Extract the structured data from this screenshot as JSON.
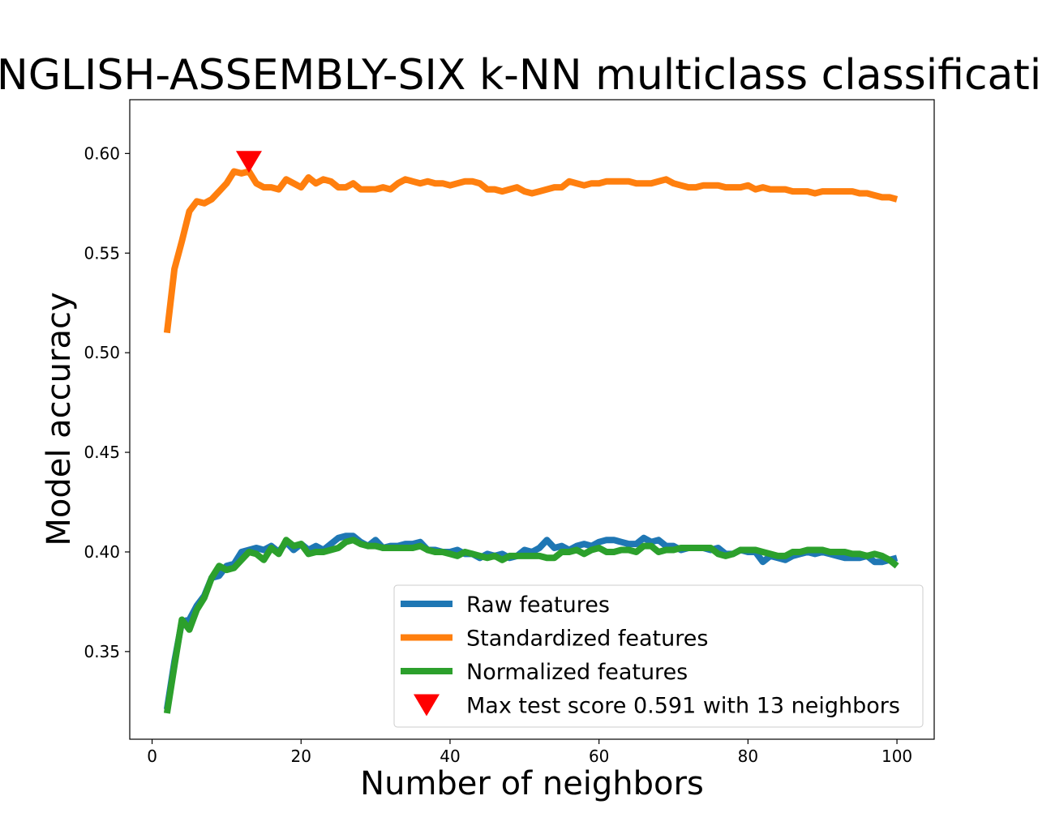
{
  "chart_data": {
    "type": "line",
    "title": "ENGLISH-ASSEMBLY-SIX k-NN multiclass classification",
    "xlabel": "Number of neighbors",
    "ylabel": "Model accuracy",
    "xlim": [
      -3,
      105
    ],
    "ylim": [
      0.306,
      0.627
    ],
    "xticks": [
      0,
      20,
      40,
      60,
      80,
      100
    ],
    "yticks": [
      0.35,
      0.4,
      0.45,
      0.5,
      0.55,
      0.6
    ],
    "xtick_labels": [
      "0",
      "20",
      "40",
      "60",
      "80",
      "100"
    ],
    "ytick_labels": [
      "0.35",
      "0.40",
      "0.45",
      "0.50",
      "0.55",
      "0.60"
    ],
    "grid": false,
    "legend_position": "lower-right",
    "x_start": 2,
    "series": [
      {
        "name": "Raw features",
        "color": "#1f77b4",
        "values": [
          0.321,
          0.345,
          0.365,
          0.366,
          0.373,
          0.378,
          0.385,
          0.389,
          0.393,
          0.395,
          0.4,
          0.401,
          0.402,
          0.401,
          0.403,
          0.4,
          0.404,
          0.402,
          0.403,
          0.402,
          0.402,
          0.402,
          0.404,
          0.406,
          0.408,
          0.407,
          0.405,
          0.404,
          0.406,
          0.403,
          0.403,
          0.403,
          0.403,
          0.404,
          0.403,
          0.404,
          0.401,
          0.4,
          0.4,
          0.401,
          0.399,
          0.4,
          0.398,
          0.399,
          0.398,
          0.399,
          0.397,
          0.398,
          0.4,
          0.4,
          0.401,
          0.402,
          0.406,
          0.402,
          0.403,
          0.402,
          0.403,
          0.404,
          0.404,
          0.406,
          0.405,
          0.405,
          0.404,
          0.404,
          0.406,
          0.405,
          0.405,
          0.403,
          0.403,
          0.402,
          0.402,
          0.402,
          0.402,
          0.401,
          0.401,
          0.399,
          0.399,
          0.401,
          0.4,
          0.399,
          0.395,
          0.398,
          0.397,
          0.397,
          0.397,
          0.398,
          0.399,
          0.4,
          0.399,
          0.399,
          0.398,
          0.397,
          0.397,
          0.397,
          0.397,
          0.398,
          0.395,
          0.395,
          0.396
        ],
        "values_fine": [
          0.321,
          0.345,
          0.365,
          0.366,
          0.373,
          0.378,
          0.387,
          0.388,
          0.393,
          0.394,
          0.4,
          0.401,
          0.402,
          0.401,
          0.403,
          0.4,
          0.405,
          0.401,
          0.404,
          0.401,
          0.403,
          0.401,
          0.404,
          0.407,
          0.408,
          0.408,
          0.405,
          0.403,
          0.406,
          0.402,
          0.403,
          0.403,
          0.404,
          0.404,
          0.405,
          0.401,
          0.401,
          0.4,
          0.4,
          0.401,
          0.399,
          0.399,
          0.397,
          0.399,
          0.398,
          0.399,
          0.397,
          0.398,
          0.401,
          0.4,
          0.402,
          0.406,
          0.402,
          0.403,
          0.401,
          0.403,
          0.404,
          0.403,
          0.405,
          0.406,
          0.406,
          0.405,
          0.404,
          0.404,
          0.407,
          0.405,
          0.406,
          0.403,
          0.403,
          0.401,
          0.402,
          0.402,
          0.402,
          0.401,
          0.402,
          0.399,
          0.399,
          0.401,
          0.4,
          0.4,
          0.395,
          0.398,
          0.397,
          0.396,
          0.398,
          0.399,
          0.4,
          0.399,
          0.4,
          0.399,
          0.398,
          0.397,
          0.397,
          0.397,
          0.398,
          0.395,
          0.395,
          0.396,
          0.397
        ]
      },
      {
        "name": "Standardized features",
        "color": "#ff7f0e",
        "values": [
          0.51,
          0.542,
          0.556,
          0.571,
          0.576,
          0.575,
          0.577,
          0.581,
          0.585,
          0.591,
          0.59,
          0.591,
          0.585,
          0.583,
          0.583,
          0.582,
          0.587,
          0.585,
          0.583,
          0.588,
          0.585,
          0.587,
          0.586,
          0.583,
          0.583,
          0.585,
          0.582,
          0.582,
          0.582,
          0.583,
          0.582,
          0.585,
          0.587,
          0.586,
          0.585,
          0.586,
          0.585,
          0.585,
          0.584,
          0.585,
          0.586,
          0.586,
          0.585,
          0.582,
          0.582,
          0.581,
          0.582,
          0.583,
          0.581,
          0.58,
          0.581,
          0.582,
          0.583,
          0.583,
          0.586,
          0.585,
          0.584,
          0.585,
          0.585,
          0.586,
          0.586,
          0.586,
          0.586,
          0.585,
          0.585,
          0.585,
          0.586,
          0.587,
          0.585,
          0.584,
          0.583,
          0.583,
          0.584,
          0.584,
          0.584,
          0.583,
          0.583,
          0.583,
          0.584,
          0.582,
          0.583,
          0.582,
          0.582,
          0.582,
          0.581,
          0.581,
          0.581,
          0.58,
          0.581,
          0.581,
          0.581,
          0.581,
          0.581,
          0.58,
          0.58,
          0.579,
          0.578,
          0.578,
          0.577
        ],
        "max_marker": {
          "x": 13,
          "y": 0.596
        }
      },
      {
        "name": "Normalized features",
        "color": "#2ca02c",
        "values": [
          0.319,
          0.343,
          0.366,
          0.361,
          0.371,
          0.377,
          0.387,
          0.393,
          0.391,
          0.392,
          0.396,
          0.4,
          0.399,
          0.396,
          0.402,
          0.399,
          0.406,
          0.403,
          0.404,
          0.399,
          0.4,
          0.4,
          0.401,
          0.402,
          0.405,
          0.406,
          0.404,
          0.403,
          0.403,
          0.402,
          0.402,
          0.402,
          0.402,
          0.402,
          0.403,
          0.401,
          0.4,
          0.4,
          0.399,
          0.398,
          0.4,
          0.399,
          0.398,
          0.397,
          0.398,
          0.396,
          0.398,
          0.398,
          0.398,
          0.398,
          0.398,
          0.397,
          0.397,
          0.4,
          0.4,
          0.401,
          0.399,
          0.401,
          0.402,
          0.4,
          0.4,
          0.401,
          0.401,
          0.4,
          0.403,
          0.403,
          0.4,
          0.401,
          0.401,
          0.402,
          0.402,
          0.402,
          0.402,
          0.402,
          0.399,
          0.398,
          0.399,
          0.401,
          0.401,
          0.401,
          0.4,
          0.399,
          0.398,
          0.398,
          0.4,
          0.4,
          0.401,
          0.401,
          0.401,
          0.4,
          0.4,
          0.4,
          0.399,
          0.399,
          0.398,
          0.399,
          0.398,
          0.396,
          0.393
        ]
      }
    ],
    "legend": [
      {
        "label": "Raw features",
        "kind": "line",
        "color": "#1f77b4"
      },
      {
        "label": "Standardized features",
        "kind": "line",
        "color": "#ff7f0e"
      },
      {
        "label": "Normalized features",
        "kind": "line",
        "color": "#2ca02c"
      },
      {
        "label": "Max test score 0.591 with 13 neighbors",
        "kind": "marker",
        "color": "#ff0000",
        "icon": "down-triangle"
      }
    ]
  }
}
